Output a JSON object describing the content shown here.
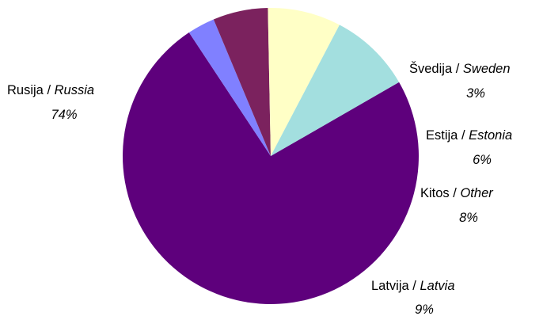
{
  "chart_data": {
    "type": "pie",
    "slices": [
      {
        "label": "Rusija",
        "label_alt": "Russia",
        "value": 74,
        "pct_label": "74%",
        "color": "#5e007c"
      },
      {
        "label": "Švedija",
        "label_alt": "Sweden",
        "value": 3,
        "pct_label": "3%",
        "color": "#8080ff"
      },
      {
        "label": "Estija",
        "label_alt": "Estonia",
        "value": 6,
        "pct_label": "6%",
        "color": "#7b225e"
      },
      {
        "label": "Kitos",
        "label_alt": "Other",
        "value": 8,
        "pct_label": "8%",
        "color": "#ffffc6"
      },
      {
        "label": "Latvija",
        "label_alt": "Latvia",
        "value": 9,
        "pct_label": "9%",
        "color": "#a3dfdf"
      }
    ],
    "separator": "/",
    "start": "12 o'clock",
    "direction": "clockwise"
  }
}
